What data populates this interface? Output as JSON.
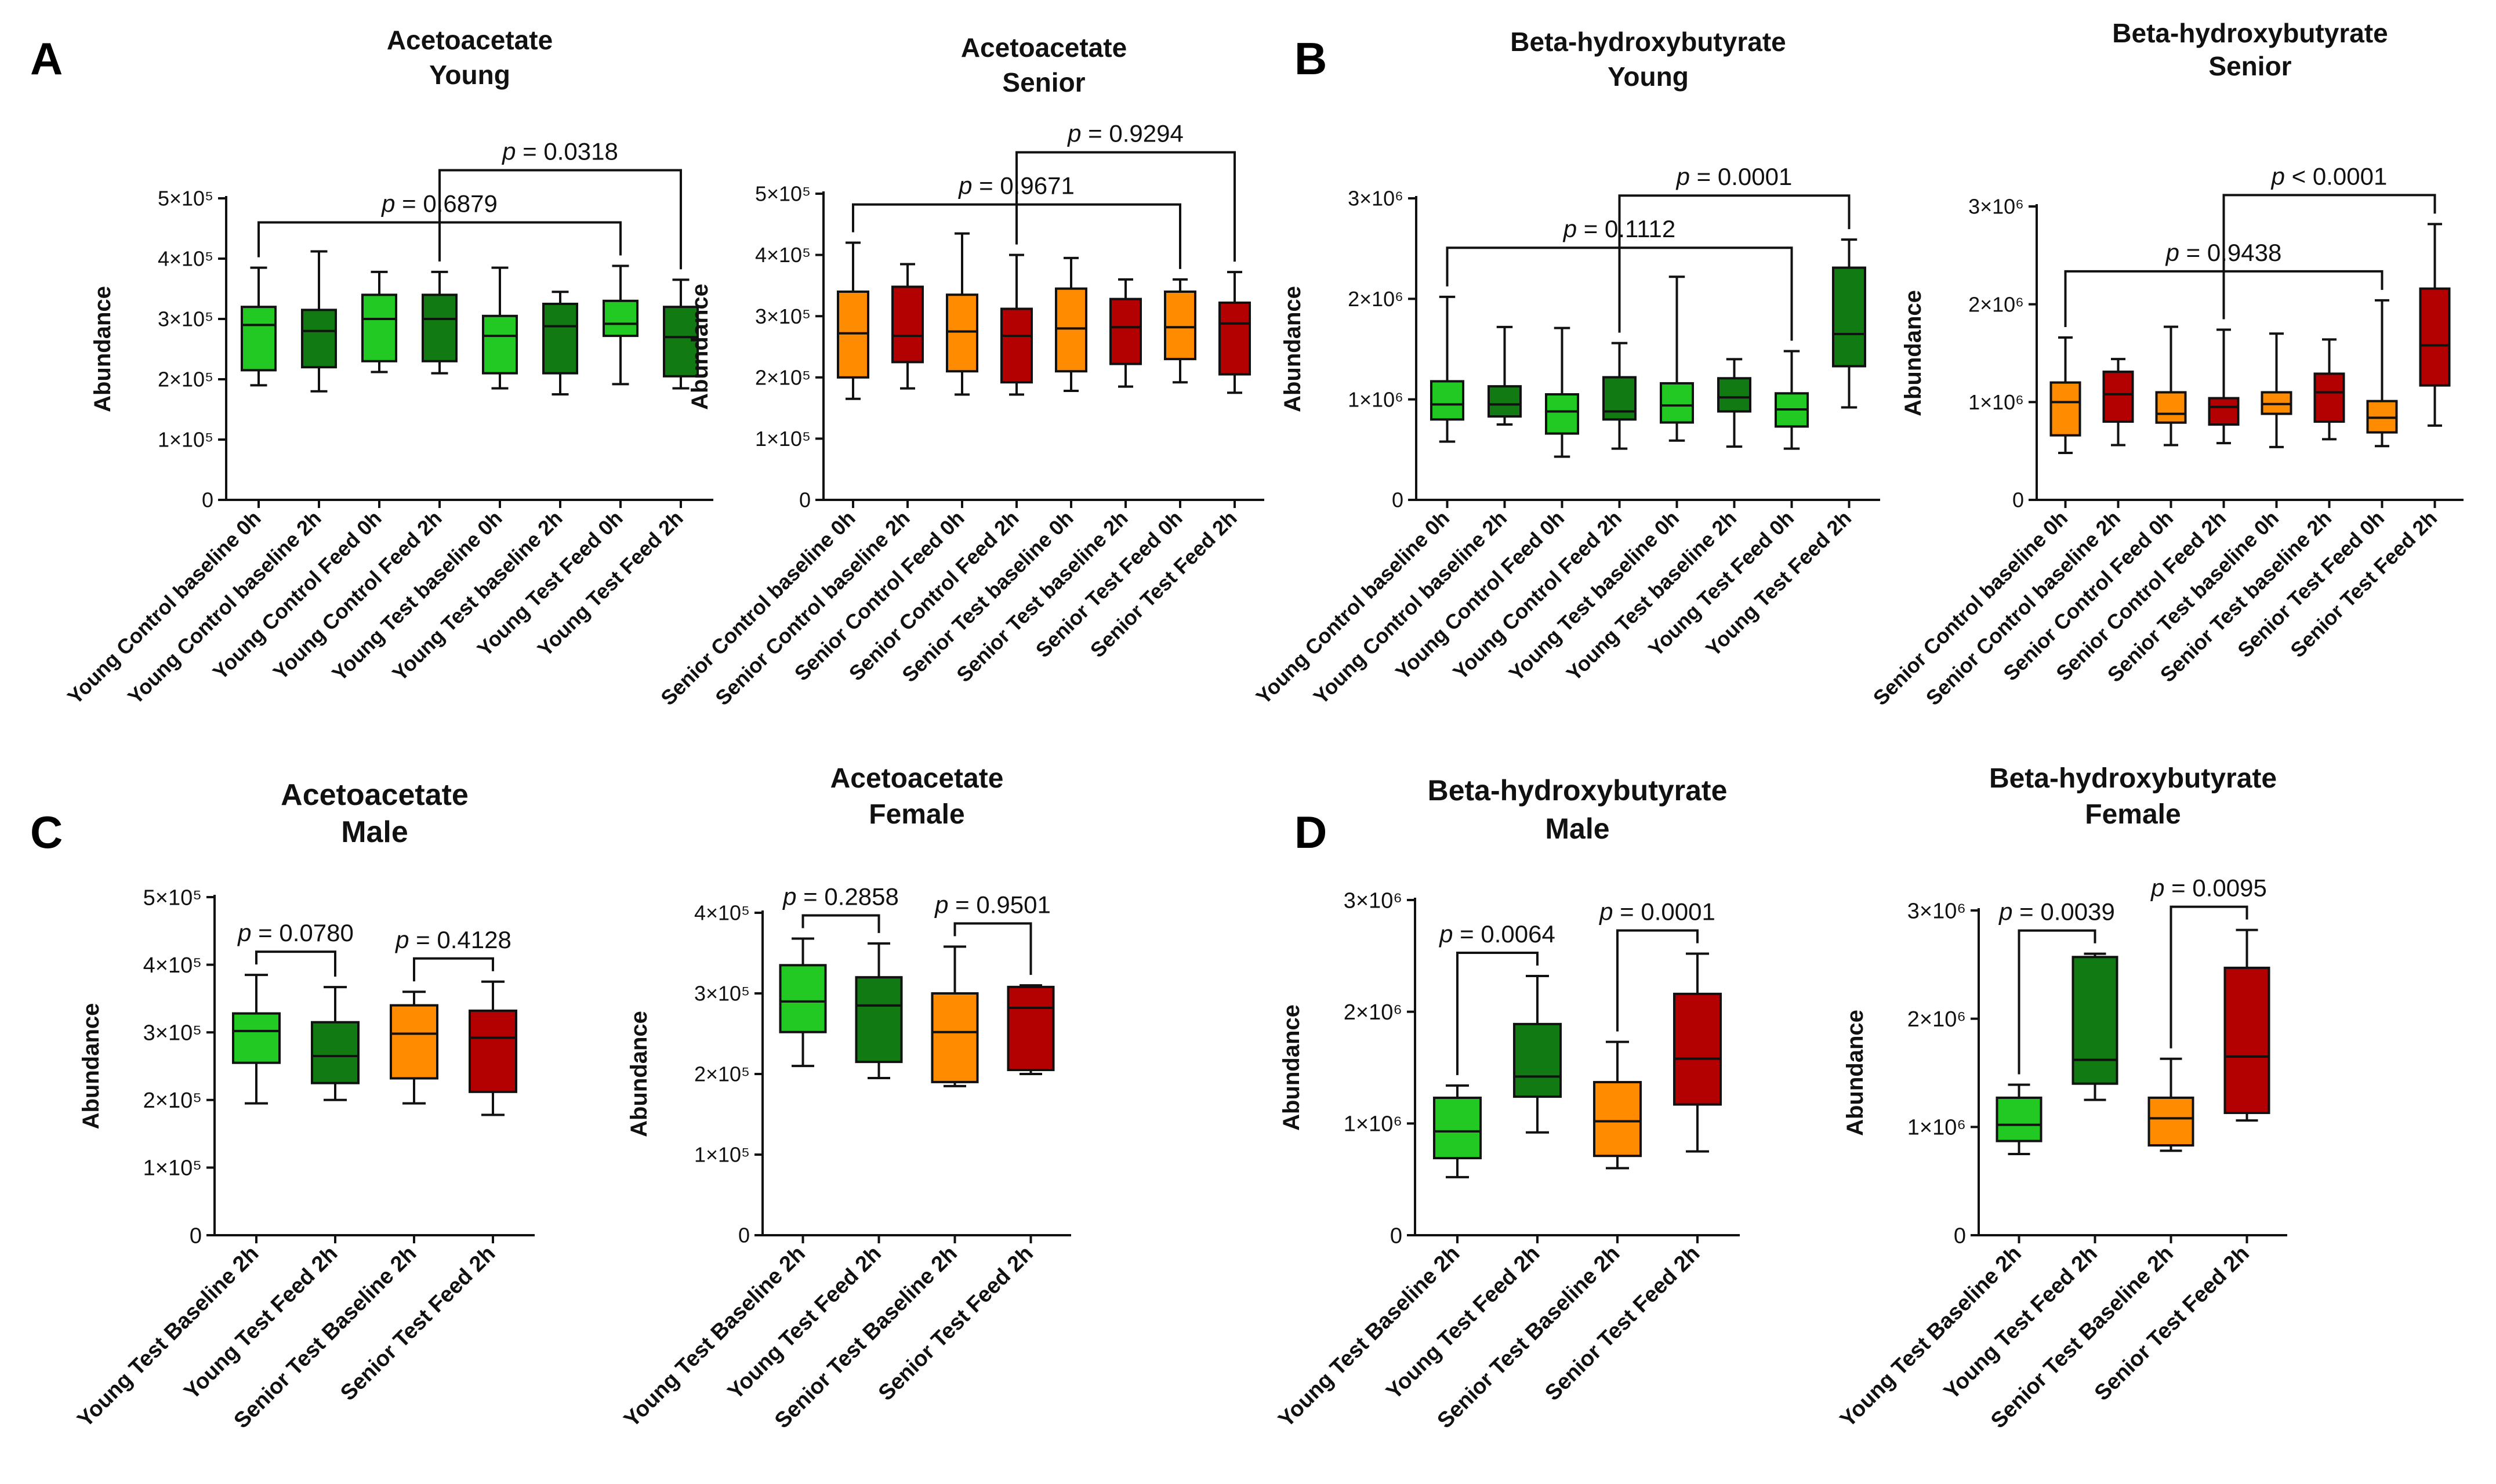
{
  "colors": {
    "light_green": "#22c922",
    "dark_green": "#127a12",
    "orange": "#ff8c00",
    "dark_red": "#b30000",
    "axis": "#111111"
  },
  "panel_labels": [
    "A",
    "B",
    "C",
    "D"
  ],
  "chart_data": [
    {
      "type": "boxplot",
      "title": [
        "Acetoacetate",
        "Young"
      ],
      "ylabel": "Abundance",
      "ylim": [
        0,
        500000
      ],
      "yticks": [
        0,
        100000,
        200000,
        300000,
        400000,
        500000
      ],
      "ytick_labels": [
        "0",
        "1×10⁵",
        "2×10⁵",
        "3×10⁵",
        "4×10⁵",
        "5×10⁵"
      ],
      "categories": [
        "Young Control baseline 0h",
        "Young Control baseline 2h",
        "Young Control Feed 0h",
        "Young Control Feed 2h",
        "Young Test baseline 0h",
        "Young Test baseline 2h",
        "Young Test Feed 0h",
        "Young Test Feed 2h"
      ],
      "box_colors": [
        "light_green",
        "dark_green",
        "light_green",
        "dark_green",
        "light_green",
        "dark_green",
        "light_green",
        "dark_green"
      ],
      "boxes": [
        {
          "min": 190000,
          "q1": 215000,
          "median": 290000,
          "q3": 320000,
          "max": 385000
        },
        {
          "min": 180000,
          "q1": 220000,
          "median": 280000,
          "q3": 315000,
          "max": 412000
        },
        {
          "min": 212000,
          "q1": 230000,
          "median": 300000,
          "q3": 340000,
          "max": 378000
        },
        {
          "min": 210000,
          "q1": 230000,
          "median": 300000,
          "q3": 340000,
          "max": 378000
        },
        {
          "min": 185000,
          "q1": 210000,
          "median": 272000,
          "q3": 305000,
          "max": 385000
        },
        {
          "min": 175000,
          "q1": 210000,
          "median": 288000,
          "q3": 325000,
          "max": 345000
        },
        {
          "min": 192000,
          "q1": 272000,
          "median": 292000,
          "q3": 330000,
          "max": 388000
        },
        {
          "min": 185000,
          "q1": 205000,
          "median": 270000,
          "q3": 320000,
          "max": 365000
        }
      ],
      "comparisons": [
        {
          "from": 0,
          "to": 6,
          "p": "= 0.6879"
        },
        {
          "from": 3,
          "to": 7,
          "p": "= 0.0318"
        }
      ]
    },
    {
      "type": "boxplot",
      "title": [
        "Acetoacetate",
        "Senior"
      ],
      "ylabel": "Abundance",
      "ylim": [
        0,
        500000
      ],
      "yticks": [
        0,
        100000,
        200000,
        300000,
        400000,
        500000
      ],
      "ytick_labels": [
        "0",
        "1×10⁵",
        "2×10⁵",
        "3×10⁵",
        "4×10⁵",
        "5×10⁵"
      ],
      "categories": [
        "Senior Control baseline 0h",
        "Senior Control baseline 2h",
        "Senior Control Feed 0h",
        "Senior Control Feed 2h",
        "Senior Test baseline 0h",
        "Senior Test baseline 2h",
        "Senior Test Feed 0h",
        "Senior Test Feed 2h"
      ],
      "box_colors": [
        "orange",
        "dark_red",
        "orange",
        "dark_red",
        "orange",
        "dark_red",
        "orange",
        "dark_red"
      ],
      "boxes": [
        {
          "min": 165000,
          "q1": 200000,
          "median": 272000,
          "q3": 340000,
          "max": 420000
        },
        {
          "min": 182000,
          "q1": 225000,
          "median": 268000,
          "q3": 348000,
          "max": 385000
        },
        {
          "min": 172000,
          "q1": 210000,
          "median": 275000,
          "q3": 335000,
          "max": 435000
        },
        {
          "min": 172000,
          "q1": 192000,
          "median": 268000,
          "q3": 312000,
          "max": 400000
        },
        {
          "min": 178000,
          "q1": 210000,
          "median": 280000,
          "q3": 345000,
          "max": 395000
        },
        {
          "min": 185000,
          "q1": 222000,
          "median": 282000,
          "q3": 328000,
          "max": 360000
        },
        {
          "min": 192000,
          "q1": 230000,
          "median": 282000,
          "q3": 340000,
          "max": 360000
        },
        {
          "min": 175000,
          "q1": 205000,
          "median": 288000,
          "q3": 322000,
          "max": 372000
        }
      ],
      "comparisons": [
        {
          "from": 0,
          "to": 6,
          "p": "= 0.9671"
        },
        {
          "from": 3,
          "to": 7,
          "p": "= 0.9294"
        }
      ]
    },
    {
      "type": "boxplot",
      "title": [
        "Beta-hydroxybutyrate",
        "Young"
      ],
      "ylabel": "Abundance",
      "ylim": [
        0,
        3000000
      ],
      "yticks": [
        0,
        1000000,
        2000000,
        3000000
      ],
      "ytick_labels": [
        "0",
        "1×10⁶",
        "2×10⁶",
        "3×10⁶"
      ],
      "categories": [
        "Young Control baseline 0h",
        "Young Control baseline 2h",
        "Young Control Feed 0h",
        "Young Control Feed 2h",
        "Young Test baseline 0h",
        "Young Test baseline 2h",
        "Young Test Feed 0h",
        "Young Test Feed 2h"
      ],
      "box_colors": [
        "light_green",
        "dark_green",
        "light_green",
        "dark_green",
        "light_green",
        "dark_green",
        "light_green",
        "dark_green"
      ],
      "boxes": [
        {
          "min": 580000,
          "q1": 800000,
          "median": 950000,
          "q3": 1180000,
          "max": 2020000
        },
        {
          "min": 750000,
          "q1": 830000,
          "median": 950000,
          "q3": 1130000,
          "max": 1720000
        },
        {
          "min": 430000,
          "q1": 660000,
          "median": 880000,
          "q3": 1050000,
          "max": 1710000
        },
        {
          "min": 510000,
          "q1": 800000,
          "median": 880000,
          "q3": 1220000,
          "max": 1560000
        },
        {
          "min": 590000,
          "q1": 770000,
          "median": 940000,
          "q3": 1160000,
          "max": 2220000
        },
        {
          "min": 530000,
          "q1": 880000,
          "median": 1020000,
          "q3": 1210000,
          "max": 1400000
        },
        {
          "min": 510000,
          "q1": 730000,
          "median": 900000,
          "q3": 1060000,
          "max": 1480000
        },
        {
          "min": 920000,
          "q1": 1330000,
          "median": 1650000,
          "q3": 2310000,
          "max": 2590000
        }
      ],
      "comparisons": [
        {
          "from": 0,
          "to": 6,
          "p": "= 0.1112"
        },
        {
          "from": 3,
          "to": 7,
          "p": "= 0.0001"
        }
      ]
    },
    {
      "type": "boxplot",
      "title": [
        "Beta-hydroxybutyrate",
        "Senior"
      ],
      "ylabel": "Abundance",
      "ylim": [
        0,
        3000000
      ],
      "yticks": [
        0,
        1000000,
        2000000,
        3000000
      ],
      "ytick_labels": [
        "0",
        "1×10⁶",
        "2×10⁶",
        "3×10⁶"
      ],
      "categories": [
        "Senior Control baseline 0h",
        "Senior Control baseline 2h",
        "Senior Control Feed 0h",
        "Senior Control Feed 2h",
        "Senior Test baseline 0h",
        "Senior Test baseline 2h",
        "Senior Test Feed 0h",
        "Senior Test Feed 2h"
      ],
      "box_colors": [
        "orange",
        "dark_red",
        "orange",
        "dark_red",
        "orange",
        "dark_red",
        "orange",
        "dark_red"
      ],
      "boxes": [
        {
          "min": 480000,
          "q1": 660000,
          "median": 1000000,
          "q3": 1200000,
          "max": 1660000
        },
        {
          "min": 560000,
          "q1": 800000,
          "median": 1080000,
          "q3": 1310000,
          "max": 1440000
        },
        {
          "min": 560000,
          "q1": 790000,
          "median": 880000,
          "q3": 1100000,
          "max": 1770000
        },
        {
          "min": 580000,
          "q1": 770000,
          "median": 950000,
          "q3": 1040000,
          "max": 1740000
        },
        {
          "min": 540000,
          "q1": 880000,
          "median": 980000,
          "q3": 1100000,
          "max": 1700000
        },
        {
          "min": 620000,
          "q1": 800000,
          "median": 1100000,
          "q3": 1290000,
          "max": 1640000
        },
        {
          "min": 550000,
          "q1": 690000,
          "median": 840000,
          "q3": 1010000,
          "max": 2040000
        },
        {
          "min": 760000,
          "q1": 1170000,
          "median": 1580000,
          "q3": 2160000,
          "max": 2820000
        }
      ],
      "comparisons": [
        {
          "from": 0,
          "to": 6,
          "p": "= 0.9438"
        },
        {
          "from": 3,
          "to": 7,
          "p": "< 0.0001"
        }
      ]
    },
    {
      "type": "boxplot",
      "title": [
        "Acetoacetate",
        "Male"
      ],
      "ylabel": "Abundance",
      "ylim": [
        0,
        500000
      ],
      "yticks": [
        0,
        100000,
        200000,
        300000,
        400000,
        500000
      ],
      "ytick_labels": [
        "0",
        "1×10⁵",
        "2×10⁵",
        "3×10⁵",
        "4×10⁵",
        "5×10⁵"
      ],
      "categories": [
        "Young Test Baseline 2h",
        "Young Test Feed 2h",
        "Senior Test Baseline 2h",
        "Senior Test Feed 2h"
      ],
      "box_colors": [
        "light_green",
        "dark_green",
        "orange",
        "dark_red"
      ],
      "boxes": [
        {
          "min": 195000,
          "q1": 255000,
          "median": 302000,
          "q3": 328000,
          "max": 385000
        },
        {
          "min": 200000,
          "q1": 225000,
          "median": 265000,
          "q3": 315000,
          "max": 367000
        },
        {
          "min": 195000,
          "q1": 232000,
          "median": 298000,
          "q3": 340000,
          "max": 360000
        },
        {
          "min": 178000,
          "q1": 212000,
          "median": 292000,
          "q3": 332000,
          "max": 375000
        }
      ],
      "comparisons": [
        {
          "from": 0,
          "to": 1,
          "p": "= 0.0780"
        },
        {
          "from": 2,
          "to": 3,
          "p": "= 0.4128"
        }
      ]
    },
    {
      "type": "boxplot",
      "title": [
        "Acetoacetate",
        "Female"
      ],
      "ylabel": "Abundance",
      "ylim": [
        0,
        400000
      ],
      "yticks": [
        0,
        100000,
        200000,
        300000,
        400000
      ],
      "ytick_labels": [
        "0",
        "1×10⁵",
        "2×10⁵",
        "3×10⁵",
        "4×10⁵"
      ],
      "categories": [
        "Young Test Baseline 2h",
        "Young Test Feed 2h",
        "Senior Test Baseline 2h",
        "Senior Test Feed 2h"
      ],
      "box_colors": [
        "light_green",
        "dark_green",
        "orange",
        "dark_red"
      ],
      "boxes": [
        {
          "min": 210000,
          "q1": 252000,
          "median": 290000,
          "q3": 335000,
          "max": 368000
        },
        {
          "min": 195000,
          "q1": 215000,
          "median": 285000,
          "q3": 320000,
          "max": 362000
        },
        {
          "min": 185000,
          "q1": 190000,
          "median": 252000,
          "q3": 300000,
          "max": 358000
        },
        {
          "min": 200000,
          "q1": 205000,
          "median": 282000,
          "q3": 308000,
          "max": 310000
        }
      ],
      "comparisons": [
        {
          "from": 0,
          "to": 1,
          "p": "= 0.2858"
        },
        {
          "from": 2,
          "to": 3,
          "p": "= 0.9501"
        }
      ]
    },
    {
      "type": "boxplot",
      "title": [
        "Beta-hydroxybutyrate",
        "Male"
      ],
      "ylabel": "Abundance",
      "ylim": [
        0,
        3000000
      ],
      "yticks": [
        0,
        1000000,
        2000000,
        3000000
      ],
      "ytick_labels": [
        "0",
        "1×10⁶",
        "2×10⁶",
        "3×10⁶"
      ],
      "categories": [
        "Young Test Baseline 2h",
        "Young Test Feed 2h",
        "Senior Test Baseline 2h",
        "Senior Test Feed 2h"
      ],
      "box_colors": [
        "light_green",
        "dark_green",
        "orange",
        "dark_red"
      ],
      "boxes": [
        {
          "min": 520000,
          "q1": 690000,
          "median": 930000,
          "q3": 1230000,
          "max": 1340000
        },
        {
          "min": 920000,
          "q1": 1240000,
          "median": 1420000,
          "q3": 1890000,
          "max": 2320000
        },
        {
          "min": 600000,
          "q1": 710000,
          "median": 1020000,
          "q3": 1370000,
          "max": 1730000
        },
        {
          "min": 750000,
          "q1": 1170000,
          "median": 1580000,
          "q3": 2160000,
          "max": 2520000
        }
      ],
      "comparisons": [
        {
          "from": 0,
          "to": 1,
          "p": "= 0.0064"
        },
        {
          "from": 2,
          "to": 3,
          "p": "= 0.0001"
        }
      ]
    },
    {
      "type": "boxplot",
      "title": [
        "Beta-hydroxybutyrate",
        "Female"
      ],
      "ylabel": "Abundance",
      "ylim": [
        0,
        3000000
      ],
      "yticks": [
        0,
        1000000,
        2000000,
        3000000
      ],
      "ytick_labels": [
        "0",
        "1×10⁶",
        "2×10⁶",
        "3×10⁶"
      ],
      "categories": [
        "Young Test Baseline 2h",
        "Young Test Feed 2h",
        "Senior Test Baseline 2h",
        "Senior Test Feed 2h"
      ],
      "box_colors": [
        "light_green",
        "dark_green",
        "orange",
        "dark_red"
      ],
      "boxes": [
        {
          "min": 750000,
          "q1": 870000,
          "median": 1020000,
          "q3": 1270000,
          "max": 1390000
        },
        {
          "min": 1250000,
          "q1": 1400000,
          "median": 1620000,
          "q3": 2570000,
          "max": 2600000
        },
        {
          "min": 780000,
          "q1": 830000,
          "median": 1080000,
          "q3": 1270000,
          "max": 1630000
        },
        {
          "min": 1060000,
          "q1": 1130000,
          "median": 1650000,
          "q3": 2470000,
          "max": 2820000
        }
      ],
      "comparisons": [
        {
          "from": 0,
          "to": 1,
          "p": "= 0.0039"
        },
        {
          "from": 2,
          "to": 3,
          "p": "= 0.0095"
        }
      ]
    }
  ]
}
